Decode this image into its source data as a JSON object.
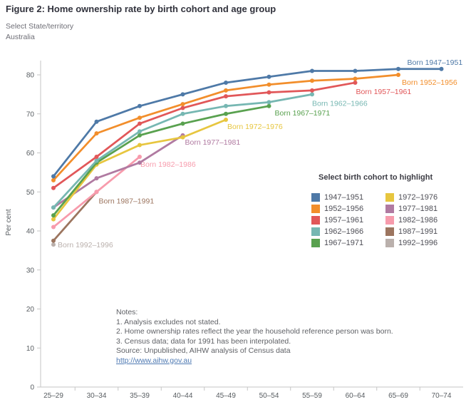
{
  "title": "Figure 2: Home ownership rate by birth cohort and age group",
  "state_selector": {
    "label": "Select State/territory",
    "value": "Australia"
  },
  "legend": {
    "title": "Select birth cohort to highlight",
    "items": [
      {
        "label": "1947–1951",
        "color": "#4e79a7"
      },
      {
        "label": "1952–1956",
        "color": "#f28e2b"
      },
      {
        "label": "1957–1961",
        "color": "#e15759"
      },
      {
        "label": "1962–1966",
        "color": "#76b7b2"
      },
      {
        "label": "1967–1971",
        "color": "#59a14f"
      },
      {
        "label": "1972–1976",
        "color": "#e7c63f"
      },
      {
        "label": "1977–1981",
        "color": "#b07aa1"
      },
      {
        "label": "1982–1986",
        "color": "#f79bac"
      },
      {
        "label": "1987–1991",
        "color": "#9c755f"
      },
      {
        "label": "1992–1996",
        "color": "#bab0ac"
      }
    ]
  },
  "chart_data": {
    "type": "line",
    "title": "Figure 2: Home ownership rate by birth cohort and age group",
    "xlabel": "",
    "ylabel": "Per cent",
    "ylim": [
      0,
      80
    ],
    "yticks": [
      0,
      10,
      20,
      30,
      40,
      50,
      60,
      70,
      80
    ],
    "grid": false,
    "legend_position": "right",
    "categories": [
      "25–29",
      "30–34",
      "35–39",
      "40–44",
      "45–49",
      "50–54",
      "55–59",
      "60–64",
      "65–69",
      "70–74"
    ],
    "series": [
      {
        "name": "1947–1951",
        "color": "#4e79a7",
        "curve_label": "Born 1947–1951",
        "values": [
          54,
          68,
          72,
          75,
          78,
          79.5,
          81,
          81,
          81.5,
          81.5
        ],
        "label_offset": [
          -48,
          -6
        ]
      },
      {
        "name": "1952–1956",
        "color": "#f28e2b",
        "curve_label": "Born 1952–1956",
        "values": [
          53,
          65,
          69,
          72.5,
          76,
          77.5,
          78.5,
          79,
          80
        ],
        "label_offset": [
          5,
          14
        ]
      },
      {
        "name": "1957–1961",
        "color": "#e15759",
        "curve_label": "Born 1957–1961",
        "values": [
          51,
          59,
          67.5,
          71.5,
          74.5,
          75.5,
          76,
          78
        ],
        "label_offset": [
          1,
          16
        ]
      },
      {
        "name": "1962–1966",
        "color": "#76b7b2",
        "curve_label": "Born 1962–1966",
        "values": [
          46,
          58,
          65.5,
          70,
          72,
          73,
          75
        ],
        "label_offset": [
          0,
          16
        ]
      },
      {
        "name": "1967–1971",
        "color": "#59a14f",
        "curve_label": "Born 1967–1971",
        "values": [
          44,
          57.5,
          64.5,
          67.5,
          70,
          72
        ],
        "label_offset": [
          8,
          13
        ]
      },
      {
        "name": "1972–1976",
        "color": "#e7c63f",
        "curve_label": "Born 1972–1976",
        "values": [
          43,
          57,
          62,
          64,
          68.5
        ],
        "label_offset": [
          2,
          13
        ]
      },
      {
        "name": "1977–1981",
        "color": "#b07aa1",
        "curve_label": "Born 1977–1981",
        "values": [
          46,
          53.5,
          57.5,
          64.5
        ],
        "label_offset": [
          3,
          13
        ]
      },
      {
        "name": "1982–1986",
        "color": "#f79bac",
        "curve_label": "Born 1982–1986",
        "values": [
          41,
          50,
          59
        ],
        "label_offset": [
          1,
          14
        ]
      },
      {
        "name": "1987–1991",
        "color": "#9c755f",
        "curve_label": "Born 1987–1991",
        "values": [
          37.5,
          50
        ],
        "label_offset": [
          3,
          16
        ]
      },
      {
        "name": "1992–1996",
        "color": "#bab0ac",
        "curve_label": "Born 1992–1996",
        "values": [
          36.5
        ],
        "label_offset": [
          6,
          4
        ]
      }
    ]
  },
  "notes": {
    "lines": [
      "Notes:",
      "1. Analysis excludes not stated.",
      "2. Home ownership rates reflect the year the household reference person was born.",
      "3. Census data; data for 1991 has been interpolated.",
      "Source: Unpublished, AIHW analysis of Census data"
    ],
    "link": "http://www.aihw.gov.au"
  }
}
